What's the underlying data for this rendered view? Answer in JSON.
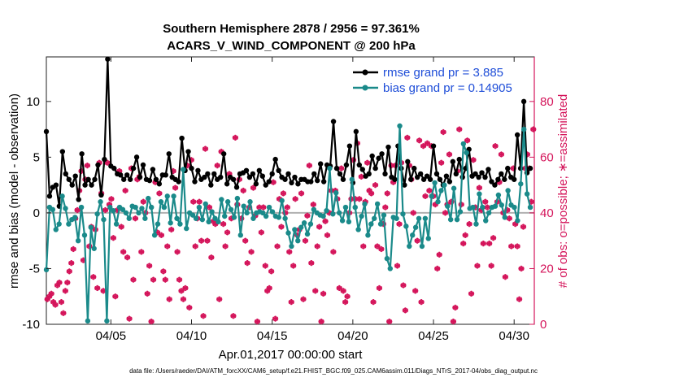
{
  "chart_data": {
    "type": "line",
    "title": [
      "Southern Hemisphere 2878 / 2956 = 97.361%",
      "ACARS_V_WIND_COMPONENT @ 200 hPa"
    ],
    "xlabel": "Apr.01,2017 00:00:00 start",
    "ylabel_left": "rmse and bias (model - observation)",
    "ylabel_right": "# of obs: o=possible; ∗=assimilated",
    "xlim": [
      1,
      31.25
    ],
    "ylim_left": [
      -10,
      14
    ],
    "ylim_right": [
      0,
      96
    ],
    "x_ticks": [
      {
        "x": 5,
        "label": "04/05"
      },
      {
        "x": 10,
        "label": "04/10"
      },
      {
        "x": 15,
        "label": "04/15"
      },
      {
        "x": 20,
        "label": "04/20"
      },
      {
        "x": 25,
        "label": "04/25"
      },
      {
        "x": 30,
        "label": "04/30"
      }
    ],
    "y_ticks_left": [
      -10,
      -5,
      0,
      5,
      10
    ],
    "y_ticks_right": [
      0,
      20,
      40,
      60,
      80
    ],
    "legend": [
      {
        "name": "rmse",
        "label": "rmse grand pr = 3.885",
        "color": "#000000"
      },
      {
        "name": "bias",
        "label": "bias grand pr = 0.14905",
        "color": "#1a8a8a"
      }
    ],
    "series": [
      {
        "name": "rmse",
        "color": "#000000",
        "values": [
          7.3,
          1.5,
          2.3,
          2.5,
          0.6,
          5.5,
          3.5,
          3.0,
          2.5,
          3.3,
          1.2,
          5.3,
          2.5,
          3.0,
          2.5,
          3.0,
          4.3,
          1.6,
          4.8,
          13.8,
          4.2,
          4.0,
          3.5,
          3.4,
          3.0,
          3.4,
          3.0,
          4.0,
          5.0,
          3.2,
          4.3,
          3.0,
          2.9,
          3.9,
          3.0,
          2.6,
          3.4,
          3.4,
          5.3,
          3.2,
          3.0,
          2.8,
          6.7,
          3.8,
          5.5,
          4.0,
          2.8,
          3.8,
          3.0,
          3.2,
          3.5,
          2.5,
          3.5,
          3.0,
          3.2,
          5.3,
          2.6,
          3.2,
          3.0,
          2.3,
          3.5,
          3.6,
          3.8,
          3.2,
          3.5,
          2.6,
          3.8,
          3.3,
          2.5,
          2.8,
          3.5,
          4.8,
          3.8,
          3.2,
          3.0,
          3.5,
          2.7,
          3.2,
          2.6,
          3.0,
          3.0,
          2.8,
          2.8,
          3.5,
          2.9,
          4.4,
          2.8,
          4.3,
          4.2,
          8.2,
          4.0,
          3.5,
          3.0,
          4.3,
          6.0,
          2.7,
          7.3,
          4.3,
          3.9,
          3.3,
          3.5,
          5.1,
          4.0,
          4.9,
          5.3,
          3.5,
          5.9,
          3.2,
          3.0,
          6.0,
          4.0,
          2.5,
          4.6,
          3.0,
          4.0,
          3.2,
          3.5,
          3.0,
          3.3,
          3.0,
          6.0,
          3.5,
          3.0,
          2.5,
          3.3,
          2.8,
          4.6,
          3.5,
          4.8,
          3.2,
          4.0,
          5.7,
          3.3,
          3.5,
          3.2,
          3.6,
          3.2,
          3.9,
          2.8,
          2.5,
          3.0,
          3.5,
          3.0,
          4.0,
          3.2,
          3.0,
          7.0,
          4.0,
          10.0,
          3.6,
          4.0
        ]
      },
      {
        "name": "bias",
        "color": "#1a8a8a",
        "values": [
          -5.1,
          0.5,
          0.3,
          -1.5,
          -1.0,
          1.5,
          0.4,
          -1.0,
          -0.6,
          -0.4,
          -2.5,
          0.5,
          -2.0,
          -9.7,
          -1.3,
          -3.2,
          -0.1,
          1.0,
          -0.6,
          -9.7,
          0.5,
          0.2,
          -1.0,
          0.5,
          0.3,
          0.0,
          -0.5,
          0.6,
          0.5,
          0.0,
          0.4,
          -0.5,
          1.3,
          0.5,
          -2.0,
          -1.0,
          1.0,
          0.5,
          1.5,
          -0.9,
          1.5,
          -0.5,
          -1.0,
          3.9,
          -1.4,
          0.0,
          -0.2,
          -0.5,
          0.5,
          -0.6,
          0.8,
          -0.8,
          0.1,
          -0.5,
          -0.8,
          1.2,
          -0.3,
          1.0,
          0.3,
          -0.4,
          1.3,
          -2.0,
          0.6,
          0.0,
          1.0,
          -0.5,
          0.0,
          0.1,
          0.0,
          -0.3,
          0.5,
          0.1,
          -0.3,
          -0.4,
          1.1,
          -0.5,
          -1.8,
          -3.0,
          -1.5,
          -2.5,
          -1.3,
          -0.9,
          -1.9,
          -1.0,
          0.3,
          0.0,
          -0.2,
          -0.3,
          0.2,
          4.0,
          -0.1,
          1.8,
          0.0,
          -0.7,
          0.5,
          -0.8,
          3.0,
          0.5,
          -1.5,
          -0.3,
          0.8,
          -2.0,
          -1.0,
          -0.5,
          0.8,
          -1.0,
          -0.2,
          -4.1,
          -5.0,
          -0.4,
          -0.5,
          7.8,
          -0.1,
          -1.2,
          -3.0,
          -2.0,
          -1.3,
          -0.5,
          -3.0,
          -0.5,
          -2.3,
          1.5,
          2.7,
          1.0,
          2.0,
          2.5,
          0.6,
          -0.6,
          2.2,
          -0.6,
          0.1,
          6.2,
          5.4,
          0.4,
          0.5,
          -1.0,
          1.7,
          0.5,
          -0.7,
          0.0,
          0.5,
          0.6,
          1.6,
          0.7,
          -0.4,
          2.0,
          0.7,
          0.5,
          -0.7,
          2.6,
          7.5,
          1.7,
          0.5
        ]
      },
      {
        "name": "obs_possible",
        "marker": "o",
        "axis": "right",
        "color": "#d4145a",
        "values": [
          9,
          10,
          11,
          8,
          7,
          14,
          15,
          8,
          4,
          12,
          15,
          19,
          22,
          27,
          38,
          41,
          48,
          55,
          23,
          52,
          57,
          28,
          35,
          17,
          34,
          13,
          58,
          47,
          12,
          41,
          58,
          43,
          45,
          31,
          10,
          41,
          55,
          35,
          26,
          48,
          24,
          2,
          56,
          16,
          38,
          52,
          53,
          26,
          44,
          40,
          11,
          21,
          1,
          16,
          51,
          33,
          47,
          32,
          19,
          16,
          28,
          9,
          34,
          55,
          49,
          26,
          16,
          12,
          9,
          13,
          57,
          6,
          59,
          44,
          28,
          38,
          44,
          30,
          3,
          63,
          30,
          42,
          24,
          37,
          36,
          57,
          9,
          62,
          36,
          28,
          33,
          54,
          38,
          3,
          67,
          43,
          52,
          38,
          48,
          30,
          22,
          42,
          26,
          49,
          39,
          1,
          42,
          33,
          42,
          21,
          12,
          13,
          19,
          51,
          2,
          28,
          45,
          35,
          47,
          40,
          42,
          26,
          8,
          21,
          45,
          32,
          34,
          47,
          9,
          30,
          39,
          57,
          22,
          43,
          12,
          28,
          35,
          1,
          11,
          37,
          32,
          40,
          48,
          26,
          48,
          45,
          13,
          56,
          12,
          8,
          10,
          40,
          45,
          59,
          45,
          65,
          45,
          53,
          28,
          44,
          58,
          48,
          47,
          8,
          50,
          28,
          13,
          27,
          36,
          42,
          47,
          1,
          57,
          51,
          57,
          21,
          36,
          58,
          14,
          5,
          67,
          57,
          52,
          40,
          12,
          30,
          66,
          8,
          64,
          46,
          65,
          48,
          64,
          46,
          43,
          20,
          25,
          58,
          69,
          40,
          43,
          61,
          44,
          1,
          6,
          55,
          70,
          43,
          29,
          32,
          66,
          36,
          11,
          59,
          42,
          21,
          49,
          41,
          29,
          44,
          42,
          29,
          21,
          31,
          64,
          44,
          51,
          61,
          40,
          17,
          41,
          38,
          28,
          56,
          36,
          28,
          9,
          20,
          35,
          56,
          61,
          56,
          44,
          70
        ]
      },
      {
        "name": "obs_assimilated",
        "marker": "*",
        "axis": "right",
        "color": "#d4145a",
        "values": [
          9,
          10,
          11,
          8,
          7,
          14,
          15,
          8,
          4,
          12,
          15,
          19,
          22,
          27,
          38,
          41,
          48,
          55,
          23,
          52,
          57,
          28,
          35,
          17,
          34,
          13,
          58,
          47,
          12,
          41,
          58,
          43,
          45,
          31,
          10,
          41,
          55,
          35,
          26,
          48,
          24,
          2,
          56,
          16,
          38,
          52,
          53,
          26,
          44,
          40,
          11,
          21,
          1,
          16,
          51,
          33,
          47,
          32,
          19,
          16,
          28,
          9,
          34,
          55,
          49,
          26,
          16,
          12,
          9,
          13,
          57,
          6,
          59,
          44,
          28,
          38,
          44,
          30,
          3,
          63,
          30,
          42,
          24,
          37,
          36,
          57,
          9,
          62,
          36,
          28,
          33,
          54,
          38,
          3,
          67,
          43,
          52,
          38,
          48,
          30,
          22,
          42,
          26,
          49,
          39,
          1,
          42,
          33,
          42,
          21,
          12,
          13,
          19,
          51,
          2,
          28,
          45,
          35,
          47,
          40,
          42,
          26,
          8,
          21,
          45,
          32,
          34,
          47,
          9,
          30,
          39,
          57,
          22,
          43,
          12,
          28,
          35,
          1,
          11,
          37,
          32,
          40,
          48,
          26,
          48,
          45,
          13,
          56,
          12,
          8,
          10,
          40,
          45,
          59,
          45,
          65,
          45,
          53,
          28,
          44,
          58,
          48,
          47,
          8,
          50,
          28,
          13,
          27,
          36,
          42,
          47,
          1,
          57,
          51,
          57,
          21,
          36,
          58,
          14,
          5,
          67,
          57,
          52,
          40,
          12,
          30,
          66,
          8,
          64,
          46,
          65,
          48,
          64,
          46,
          43,
          20,
          25,
          58,
          69,
          40,
          43,
          61,
          44,
          1,
          6,
          55,
          70,
          43,
          29,
          32,
          66,
          36,
          11,
          59,
          42,
          21,
          49,
          41,
          29,
          44,
          42,
          29,
          21,
          31,
          64,
          44,
          51,
          61,
          40,
          17,
          41,
          38,
          28,
          56,
          36,
          28,
          9,
          20,
          35,
          56,
          61,
          56,
          44,
          70
        ]
      }
    ]
  },
  "footnote": "data file: /Users/raeder/DAI/ATM_forcXX/CAM6_setup/f.e21.FHIST_BGC.f09_025.CAM6assim.011/Diags_NTrS_2017-04/obs_diag_output.nc"
}
